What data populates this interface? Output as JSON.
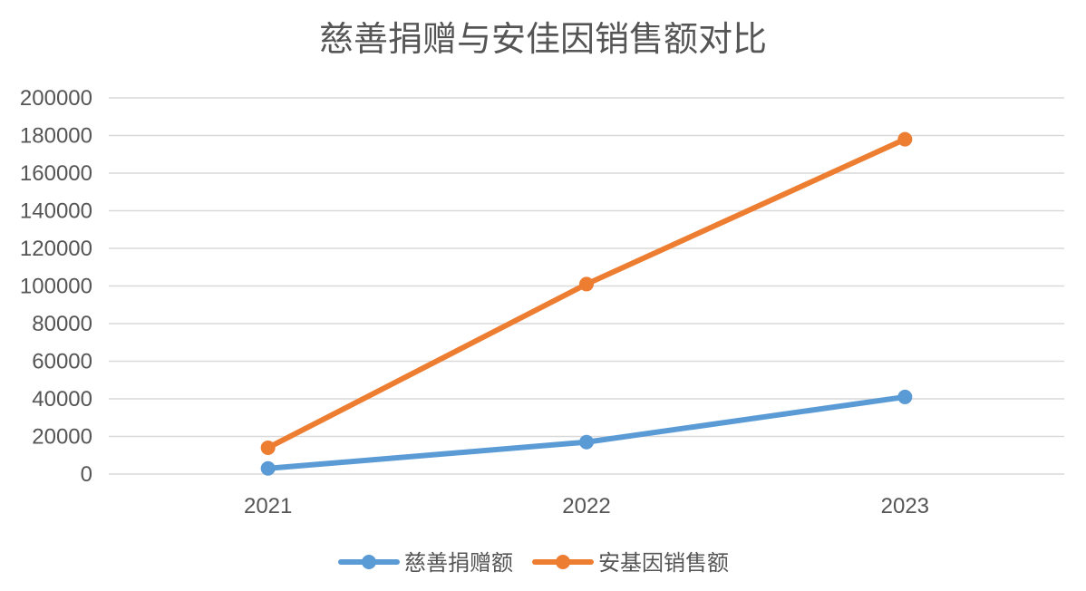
{
  "chart_data": {
    "type": "line",
    "title": "慈善捐赠与安佳因销售额对比",
    "xlabel": "",
    "ylabel": "",
    "x": [
      "2021",
      "2022",
      "2023"
    ],
    "y_ticks": [
      "0",
      "20000",
      "40000",
      "60000",
      "80000",
      "100000",
      "120000",
      "140000",
      "160000",
      "180000",
      "200000"
    ],
    "ylim": [
      0,
      200000
    ],
    "grid": true,
    "legend_position": "bottom",
    "series": [
      {
        "name": "慈善捐赠额",
        "values": [
          3000,
          17000,
          41000
        ],
        "color": "#5b9bd5"
      },
      {
        "name": "安基因销售额",
        "values": [
          14000,
          101000,
          178000
        ],
        "color": "#ed7d31"
      }
    ]
  }
}
